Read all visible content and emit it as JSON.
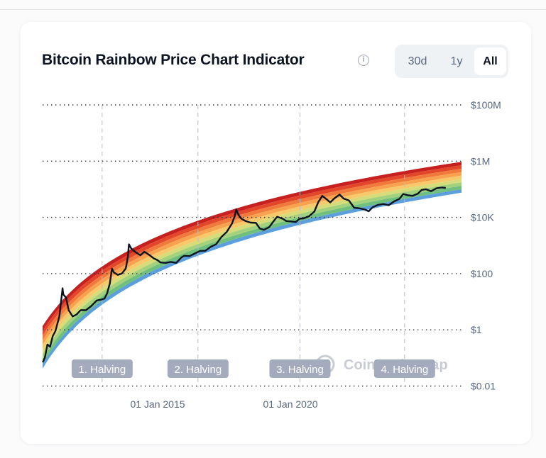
{
  "header": {
    "title": "Bitcoin Rainbow Price Chart Indicator",
    "info_icon": "info-icon"
  },
  "range_selector": {
    "options": [
      {
        "label": "30d",
        "active": false
      },
      {
        "label": "1y",
        "active": false
      },
      {
        "label": "All",
        "active": true
      }
    ]
  },
  "watermark": {
    "text": "CoinMarketCap",
    "visible_left": "Coi",
    "visible_right": "ap"
  },
  "colors": {
    "bands": [
      "#c8201f",
      "#e2472a",
      "#f07a3c",
      "#f6a24f",
      "#f7c96a",
      "#d6dc7a",
      "#a2d27d",
      "#6fbf7f",
      "#5d9fdc"
    ],
    "price_line": "#0d1421",
    "halving_badge": "#a3abbd",
    "grid": "#333333",
    "axis_text": "#58667e"
  },
  "chart_data": {
    "type": "line",
    "title": "Bitcoin Rainbow Price Chart Indicator",
    "xlabel": "",
    "ylabel": "",
    "y_scale": "log",
    "ylim": [
      0.01,
      100000000
    ],
    "y_ticks": [
      "$100M",
      "$1M",
      "$10K",
      "$100",
      "$1",
      "$0.01"
    ],
    "y_tick_values": [
      100000000,
      1000000,
      10000,
      100,
      1,
      0.01
    ],
    "x_ticks": [
      "01 Jan 2015",
      "01 Jan 2020"
    ],
    "xlim": [
      2010.67,
      2026.45
    ],
    "grid": {
      "horizontal": "dotted",
      "vertical": "dashed at halvings"
    },
    "annotations": [
      {
        "label": "1. Halving",
        "x": 2012.91
      },
      {
        "label": "2. Halving",
        "x": 2016.52
      },
      {
        "label": "3. Halving",
        "x": 2020.36
      },
      {
        "label": "4. Halving",
        "x": 2024.3
      }
    ],
    "rainbow": {
      "bands": 9,
      "model": "log10(price) = a*ln(days since 2009-01-03) + b",
      "top": {
        "a": 2.485,
        "b": -15.79
      },
      "bottom": {
        "a": 2.66,
        "b": -18.42
      }
    },
    "series": [
      {
        "name": "BTC Price",
        "x": [
          2010.67,
          2010.75,
          2010.85,
          2010.95,
          2011.05,
          2011.15,
          2011.3,
          2011.42,
          2011.45,
          2011.55,
          2011.65,
          2011.8,
          2011.95,
          2012.1,
          2012.3,
          2012.5,
          2012.7,
          2012.9,
          2013.0,
          2013.1,
          2013.2,
          2013.28,
          2013.35,
          2013.5,
          2013.65,
          2013.8,
          2013.88,
          2013.92,
          2014.0,
          2014.1,
          2014.2,
          2014.35,
          2014.5,
          2014.7,
          2014.85,
          2015.0,
          2015.1,
          2015.3,
          2015.5,
          2015.7,
          2015.9,
          2016.0,
          2016.2,
          2016.4,
          2016.6,
          2016.8,
          2017.0,
          2017.2,
          2017.4,
          2017.6,
          2017.8,
          2017.9,
          2017.96,
          2018.05,
          2018.15,
          2018.3,
          2018.5,
          2018.7,
          2018.85,
          2019.0,
          2019.2,
          2019.4,
          2019.5,
          2019.7,
          2019.85,
          2020.0,
          2020.2,
          2020.35,
          2020.5,
          2020.7,
          2020.9,
          2021.05,
          2021.2,
          2021.35,
          2021.5,
          2021.65,
          2021.85,
          2022.0,
          2022.2,
          2022.4,
          2022.6,
          2022.8,
          2022.95,
          2023.1,
          2023.3,
          2023.5,
          2023.7,
          2023.9,
          2024.1,
          2024.25,
          2024.4,
          2024.6,
          2024.8,
          2024.95,
          2025.1,
          2025.3,
          2025.5,
          2025.7,
          2025.85
        ],
        "values": [
          0.07,
          0.1,
          0.3,
          0.25,
          0.6,
          0.9,
          3,
          30,
          18,
          14,
          5,
          3,
          3.5,
          5,
          5,
          7,
          11,
          12,
          13,
          20,
          45,
          150,
          110,
          90,
          100,
          150,
          400,
          1100,
          800,
          650,
          550,
          450,
          600,
          450,
          350,
          300,
          250,
          240,
          260,
          240,
          380,
          430,
          420,
          520,
          640,
          650,
          900,
          1100,
          2000,
          3000,
          6000,
          11000,
          19000,
          12000,
          9000,
          7500,
          6500,
          6400,
          4000,
          3600,
          4500,
          8000,
          10500,
          9000,
          7400,
          7200,
          6800,
          9000,
          9200,
          11000,
          16000,
          35000,
          58000,
          45000,
          34000,
          47000,
          65000,
          47000,
          40000,
          22000,
          21000,
          19000,
          16500,
          23000,
          28000,
          30000,
          27000,
          37000,
          45000,
          68000,
          62000,
          58000,
          70000,
          95000,
          100000,
          85000,
          108000,
          115000,
          112000
        ]
      }
    ]
  }
}
